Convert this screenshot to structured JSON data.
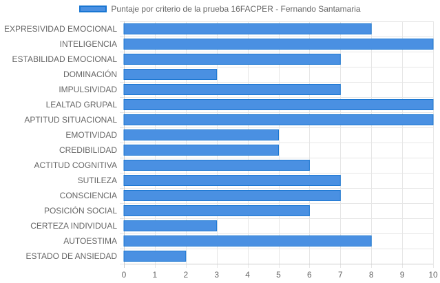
{
  "chart_data": {
    "type": "bar",
    "orientation": "horizontal",
    "title": "",
    "xlabel": "",
    "ylabel": "",
    "xlim": [
      0,
      10
    ],
    "x_ticks": [
      "0",
      "1",
      "2",
      "3",
      "4",
      "5",
      "6",
      "7",
      "8",
      "9",
      "10"
    ],
    "grid": true,
    "legend_position": "top",
    "categories": [
      "EXPRESIVIDAD EMOCIONAL",
      "INTELIGENCIA",
      "ESTABILIDAD EMOCIONAL",
      "DOMINACIÓN",
      "IMPULSIVIDAD",
      "LEALTAD GRUPAL",
      "APTITUD SITUACIONAL",
      "EMOTIVIDAD",
      "CREDIBILIDAD",
      "ACTITUD COGNITIVA",
      "SUTILEZA",
      "CONSCIENCIA",
      "POSICIÓN SOCIAL",
      "CERTEZA INDIVIDUAL",
      "AUTOESTIMA",
      "ESTADO DE ANSIEDAD"
    ],
    "series": [
      {
        "name": "Puntaje por criterio de la prueba 16FACPER - Fernando Santamaria",
        "values": [
          8,
          10,
          7,
          3,
          7,
          10,
          10,
          5,
          5,
          6,
          7,
          7,
          6,
          3,
          8,
          2
        ]
      }
    ],
    "colors": {
      "bar_fill": "#4a90e2",
      "bar_border": "#1976d2",
      "grid": "#e6e6e6",
      "axis": "#cccccc",
      "text": "#666666"
    }
  }
}
